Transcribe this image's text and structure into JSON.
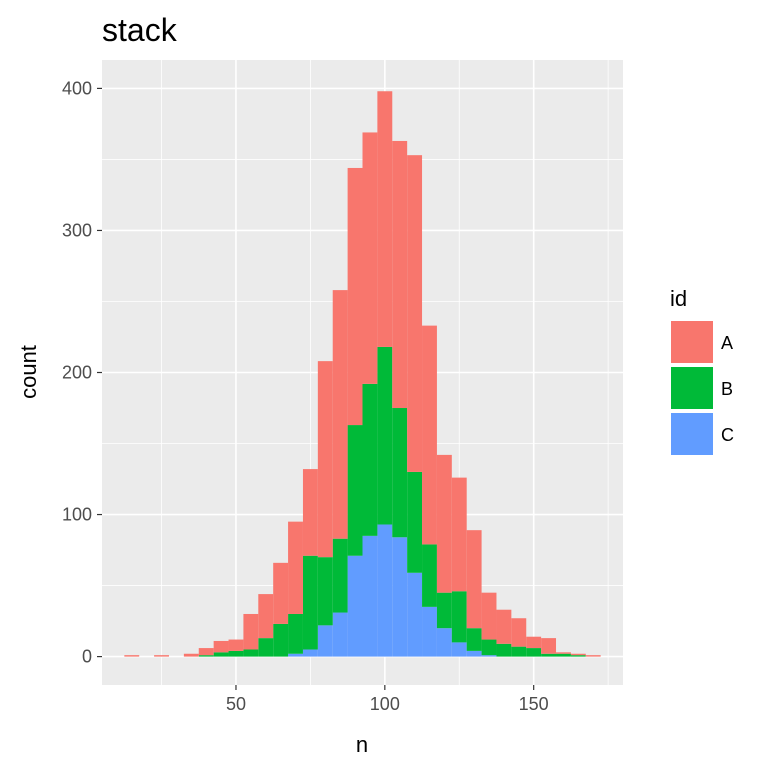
{
  "chart_data": {
    "type": "bar",
    "position": "stack",
    "title": "stack",
    "xlabel": "n",
    "ylabel": "count",
    "xlim": [
      5,
      180
    ],
    "ylim": [
      -20,
      420
    ],
    "x_ticks": [
      50,
      100,
      150
    ],
    "y_ticks": [
      0,
      100,
      200,
      300,
      400
    ],
    "x_minor_ticks": [
      25,
      75,
      125,
      175
    ],
    "y_minor_ticks": [
      50,
      150,
      250,
      350
    ],
    "grid": true,
    "legend": {
      "title": "id",
      "position": "right"
    },
    "binwidth": 5,
    "x": [
      15,
      25,
      35,
      40,
      45,
      50,
      55,
      60,
      65,
      70,
      75,
      80,
      85,
      90,
      95,
      100,
      105,
      110,
      115,
      120,
      125,
      130,
      135,
      140,
      145,
      150,
      155,
      160,
      165,
      170
    ],
    "series": [
      {
        "name": "C",
        "color": "#619CFF",
        "values": [
          0,
          0,
          0,
          0,
          0,
          0,
          0,
          0,
          0,
          2,
          5,
          22,
          31,
          71,
          85,
          93,
          84,
          59,
          35,
          20,
          10,
          4,
          1,
          0,
          0,
          0,
          0,
          0,
          0,
          0
        ]
      },
      {
        "name": "B",
        "color": "#00BA38",
        "values": [
          0,
          0,
          0,
          1,
          3,
          4,
          5,
          13,
          23,
          28,
          66,
          48,
          52,
          92,
          107,
          125,
          91,
          71,
          44,
          25,
          36,
          16,
          11,
          9,
          7,
          6,
          2,
          2,
          1,
          0
        ]
      },
      {
        "name": "A",
        "color": "#F8766D",
        "values": [
          1,
          1,
          2,
          5,
          8,
          8,
          25,
          31,
          43,
          65,
          61,
          138,
          175,
          181,
          177,
          180,
          188,
          223,
          154,
          97,
          80,
          69,
          33,
          24,
          20,
          8,
          11,
          1,
          1,
          1
        ]
      }
    ]
  },
  "legend_order": [
    "A",
    "B",
    "C"
  ]
}
